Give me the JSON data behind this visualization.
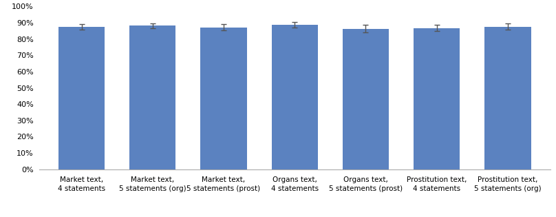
{
  "categories": [
    "Market text,\n4 statements",
    "Market text,\n5 statements (org)",
    "Market text,\n5 statements (prost)",
    "Organs text,\n4 statements",
    "Organs text,\n5 statements (prost)",
    "Prostitution text,\n4 statements",
    "Prostitution text,\n5 statements (org)"
  ],
  "values": [
    0.875,
    0.883,
    0.872,
    0.888,
    0.864,
    0.868,
    0.876
  ],
  "errors": [
    0.018,
    0.015,
    0.02,
    0.017,
    0.022,
    0.019,
    0.018
  ],
  "bar_color": "#5B82C0",
  "ylim": [
    0,
    1.0
  ],
  "yticks": [
    0,
    0.1,
    0.2,
    0.3,
    0.4,
    0.5,
    0.6,
    0.7,
    0.8,
    0.9,
    1.0
  ],
  "background_color": "#ffffff",
  "grid_color": "#e0e0e0",
  "errorbar_color": "#555555",
  "bar_width": 0.65
}
